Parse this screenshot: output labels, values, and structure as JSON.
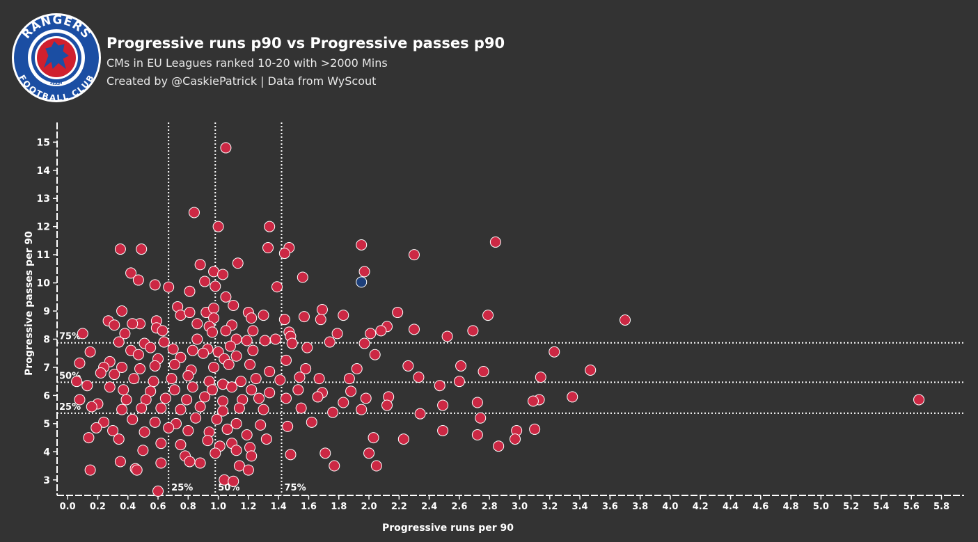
{
  "header": {
    "title": "Progressive runs p90 vs Progressive passes p90",
    "subtitle": "CMs in EU Leagues ranked 10-20 with >2000 Mins",
    "credit": "Created by @CaskiePatrick | Data from WyScout"
  },
  "logo": {
    "icon": "rangers-crest-icon",
    "text_top": "RANGERS",
    "text_bottom": "FOOTBALL CLUB",
    "text_small": "READY",
    "colors": {
      "blue": "#1b4ea3",
      "red": "#d0202e",
      "white": "#ffffff"
    }
  },
  "chart_data": {
    "type": "scatter",
    "xlabel": "Progressive runs per 90",
    "ylabel": "Progressive passes per 90",
    "xlim": [
      -0.07,
      5.95
    ],
    "ylim": [
      2.45,
      15.7
    ],
    "xticks": [
      "0.0",
      "0.2",
      "0.4",
      "0.6",
      "0.8",
      "1.0",
      "1.2",
      "1.4",
      "1.6",
      "1.8",
      "2.0",
      "2.2",
      "2.4",
      "2.6",
      "2.8",
      "3.0",
      "3.2",
      "3.4",
      "3.6",
      "3.8",
      "4.0",
      "4.2",
      "4.4",
      "4.6",
      "4.8",
      "5.0",
      "5.2",
      "5.4",
      "5.6",
      "5.8"
    ],
    "yticks": [
      "3",
      "4",
      "5",
      "6",
      "7",
      "8",
      "9",
      "10",
      "11",
      "12",
      "13",
      "14",
      "15"
    ],
    "grid": false,
    "colors": {
      "points": "#cc2844",
      "highlight": "#1d3f7a",
      "point_stroke": "#ffffff",
      "background": "#333333"
    },
    "percentile_lines": {
      "x": [
        {
          "label": "25%",
          "value": 0.67
        },
        {
          "label": "50%",
          "value": 0.98
        },
        {
          "label": "75%",
          "value": 1.42
        }
      ],
      "y": [
        {
          "label": "75%",
          "value": 7.87
        },
        {
          "label": "50%",
          "value": 6.47
        },
        {
          "label": "25%",
          "value": 5.37
        }
      ]
    },
    "highlight": {
      "x": 1.95,
      "y": 10.03
    },
    "series": [
      {
        "points": [
          [
            1.05,
            14.8
          ],
          [
            0.84,
            12.5
          ],
          [
            1.0,
            12.0
          ],
          [
            1.34,
            12.0
          ],
          [
            1.33,
            11.25
          ],
          [
            1.47,
            11.25
          ],
          [
            0.35,
            11.2
          ],
          [
            0.49,
            11.2
          ],
          [
            1.95,
            11.35
          ],
          [
            2.84,
            11.45
          ],
          [
            2.3,
            11.0
          ],
          [
            1.44,
            11.05
          ],
          [
            0.88,
            10.65
          ],
          [
            1.13,
            10.7
          ],
          [
            0.42,
            10.35
          ],
          [
            0.97,
            10.4
          ],
          [
            1.03,
            10.3
          ],
          [
            1.97,
            10.4
          ],
          [
            0.47,
            10.1
          ],
          [
            0.91,
            10.05
          ],
          [
            0.98,
            9.88
          ],
          [
            0.58,
            9.93
          ],
          [
            0.67,
            9.85
          ],
          [
            1.39,
            9.86
          ],
          [
            1.56,
            10.2
          ],
          [
            0.81,
            9.7
          ],
          [
            1.05,
            9.5
          ],
          [
            1.1,
            9.2
          ],
          [
            0.73,
            9.15
          ],
          [
            1.69,
            9.05
          ],
          [
            0.36,
            9.0
          ],
          [
            0.75,
            8.85
          ],
          [
            0.81,
            8.95
          ],
          [
            0.92,
            8.95
          ],
          [
            0.97,
            9.1
          ],
          [
            1.2,
            8.95
          ],
          [
            1.3,
            8.85
          ],
          [
            1.57,
            8.8
          ],
          [
            1.83,
            8.85
          ],
          [
            2.19,
            8.95
          ],
          [
            2.79,
            8.85
          ],
          [
            3.7,
            8.68
          ],
          [
            0.97,
            8.75
          ],
          [
            1.09,
            8.5
          ],
          [
            1.22,
            8.75
          ],
          [
            1.44,
            8.7
          ],
          [
            1.68,
            8.7
          ],
          [
            0.27,
            8.65
          ],
          [
            0.48,
            8.55
          ],
          [
            0.59,
            8.65
          ],
          [
            0.86,
            8.55
          ],
          [
            0.94,
            8.45
          ],
          [
            2.12,
            8.45
          ],
          [
            2.3,
            8.35
          ],
          [
            0.31,
            8.5
          ],
          [
            0.43,
            8.55
          ],
          [
            0.59,
            8.4
          ],
          [
            0.38,
            8.2
          ],
          [
            0.63,
            8.3
          ],
          [
            0.96,
            8.25
          ],
          [
            1.05,
            8.3
          ],
          [
            1.23,
            8.3
          ],
          [
            1.47,
            8.25
          ],
          [
            1.48,
            8.1
          ],
          [
            1.38,
            8.0
          ],
          [
            1.79,
            8.2
          ],
          [
            2.01,
            8.2
          ],
          [
            2.08,
            8.3
          ],
          [
            2.69,
            8.3
          ],
          [
            2.52,
            8.1
          ],
          [
            0.1,
            8.2
          ],
          [
            0.34,
            7.9
          ],
          [
            0.51,
            7.85
          ],
          [
            0.64,
            7.9
          ],
          [
            0.86,
            8.0
          ],
          [
            1.12,
            8.0
          ],
          [
            1.19,
            7.95
          ],
          [
            1.31,
            7.95
          ],
          [
            1.49,
            7.85
          ],
          [
            1.74,
            7.9
          ],
          [
            1.97,
            7.85
          ],
          [
            0.42,
            7.6
          ],
          [
            0.55,
            7.7
          ],
          [
            0.7,
            7.65
          ],
          [
            0.83,
            7.6
          ],
          [
            0.93,
            7.65
          ],
          [
            1.0,
            7.55
          ],
          [
            1.08,
            7.75
          ],
          [
            1.23,
            7.6
          ],
          [
            1.59,
            7.7
          ],
          [
            0.15,
            7.55
          ],
          [
            0.28,
            7.2
          ],
          [
            0.47,
            7.45
          ],
          [
            0.6,
            7.3
          ],
          [
            0.75,
            7.35
          ],
          [
            0.9,
            7.5
          ],
          [
            1.04,
            7.3
          ],
          [
            1.12,
            7.4
          ],
          [
            1.45,
            7.25
          ],
          [
            2.04,
            7.45
          ],
          [
            3.23,
            7.55
          ],
          [
            0.08,
            7.15
          ],
          [
            0.24,
            7.0
          ],
          [
            0.36,
            7.0
          ],
          [
            0.48,
            6.95
          ],
          [
            0.58,
            7.05
          ],
          [
            0.71,
            7.1
          ],
          [
            0.82,
            6.9
          ],
          [
            0.97,
            7.0
          ],
          [
            1.07,
            7.1
          ],
          [
            1.34,
            6.85
          ],
          [
            1.21,
            7.1
          ],
          [
            1.58,
            6.95
          ],
          [
            1.92,
            6.95
          ],
          [
            2.26,
            7.05
          ],
          [
            2.61,
            7.05
          ],
          [
            2.76,
            6.85
          ],
          [
            3.47,
            6.9
          ],
          [
            0.06,
            6.5
          ],
          [
            0.22,
            6.8
          ],
          [
            0.31,
            6.75
          ],
          [
            0.44,
            6.6
          ],
          [
            0.57,
            6.5
          ],
          [
            0.69,
            6.6
          ],
          [
            0.8,
            6.7
          ],
          [
            0.94,
            6.5
          ],
          [
            1.03,
            6.4
          ],
          [
            1.15,
            6.5
          ],
          [
            1.25,
            6.6
          ],
          [
            1.41,
            6.55
          ],
          [
            1.54,
            6.65
          ],
          [
            1.67,
            6.6
          ],
          [
            1.87,
            6.6
          ],
          [
            2.33,
            6.65
          ],
          [
            2.47,
            6.35
          ],
          [
            2.6,
            6.5
          ],
          [
            3.14,
            6.65
          ],
          [
            0.13,
            6.35
          ],
          [
            0.28,
            6.3
          ],
          [
            0.37,
            6.2
          ],
          [
            0.55,
            6.15
          ],
          [
            0.71,
            6.2
          ],
          [
            0.83,
            6.3
          ],
          [
            0.96,
            6.2
          ],
          [
            1.09,
            6.3
          ],
          [
            1.22,
            6.2
          ],
          [
            1.34,
            6.1
          ],
          [
            1.53,
            6.2
          ],
          [
            1.69,
            6.1
          ],
          [
            1.88,
            6.15
          ],
          [
            0.08,
            5.85
          ],
          [
            0.2,
            5.7
          ],
          [
            0.39,
            5.85
          ],
          [
            0.52,
            5.85
          ],
          [
            0.65,
            5.9
          ],
          [
            0.79,
            5.85
          ],
          [
            0.91,
            5.95
          ],
          [
            1.03,
            5.8
          ],
          [
            1.16,
            5.85
          ],
          [
            1.27,
            5.9
          ],
          [
            1.45,
            5.9
          ],
          [
            1.66,
            5.95
          ],
          [
            1.83,
            5.75
          ],
          [
            1.98,
            5.9
          ],
          [
            2.13,
            5.95
          ],
          [
            2.72,
            5.75
          ],
          [
            3.13,
            5.85
          ],
          [
            3.35,
            5.95
          ],
          [
            5.65,
            5.85
          ],
          [
            0.16,
            5.6
          ],
          [
            0.36,
            5.5
          ],
          [
            0.49,
            5.55
          ],
          [
            0.62,
            5.55
          ],
          [
            0.75,
            5.5
          ],
          [
            0.88,
            5.6
          ],
          [
            1.03,
            5.45
          ],
          [
            1.14,
            5.55
          ],
          [
            1.3,
            5.5
          ],
          [
            1.55,
            5.55
          ],
          [
            1.76,
            5.4
          ],
          [
            1.95,
            5.5
          ],
          [
            2.12,
            5.65
          ],
          [
            2.34,
            5.35
          ],
          [
            2.49,
            5.65
          ],
          [
            2.74,
            5.2
          ],
          [
            3.09,
            5.8
          ],
          [
            0.24,
            5.05
          ],
          [
            0.43,
            5.15
          ],
          [
            0.58,
            5.05
          ],
          [
            0.72,
            5.0
          ],
          [
            0.85,
            5.2
          ],
          [
            0.99,
            5.15
          ],
          [
            1.12,
            5.0
          ],
          [
            1.28,
            4.95
          ],
          [
            1.46,
            4.9
          ],
          [
            1.62,
            5.05
          ],
          [
            0.19,
            4.85
          ],
          [
            0.3,
            4.75
          ],
          [
            0.51,
            4.7
          ],
          [
            0.67,
            4.85
          ],
          [
            0.8,
            4.75
          ],
          [
            0.94,
            4.7
          ],
          [
            1.06,
            4.8
          ],
          [
            1.19,
            4.6
          ],
          [
            2.23,
            4.45
          ],
          [
            2.49,
            4.75
          ],
          [
            2.72,
            4.6
          ],
          [
            2.98,
            4.75
          ],
          [
            3.1,
            4.8
          ],
          [
            0.14,
            4.5
          ],
          [
            0.34,
            4.45
          ],
          [
            0.62,
            4.3
          ],
          [
            0.75,
            4.25
          ],
          [
            0.93,
            4.4
          ],
          [
            1.01,
            4.2
          ],
          [
            1.09,
            4.3
          ],
          [
            1.21,
            4.15
          ],
          [
            1.32,
            4.45
          ],
          [
            2.0,
            3.95
          ],
          [
            2.03,
            4.5
          ],
          [
            2.86,
            4.2
          ],
          [
            2.97,
            4.45
          ],
          [
            0.5,
            4.05
          ],
          [
            0.78,
            3.85
          ],
          [
            0.98,
            3.95
          ],
          [
            1.12,
            4.05
          ],
          [
            1.22,
            3.85
          ],
          [
            1.48,
            3.9
          ],
          [
            1.71,
            3.95
          ],
          [
            0.35,
            3.65
          ],
          [
            0.62,
            3.6
          ],
          [
            0.81,
            3.65
          ],
          [
            0.88,
            3.6
          ],
          [
            1.14,
            3.5
          ],
          [
            1.2,
            3.35
          ],
          [
            1.77,
            3.5
          ],
          [
            2.05,
            3.5
          ],
          [
            0.15,
            3.35
          ],
          [
            0.45,
            3.4
          ],
          [
            0.46,
            3.35
          ],
          [
            1.04,
            3.0
          ],
          [
            1.1,
            2.95
          ],
          [
            0.6,
            2.6
          ]
        ]
      }
    ]
  }
}
